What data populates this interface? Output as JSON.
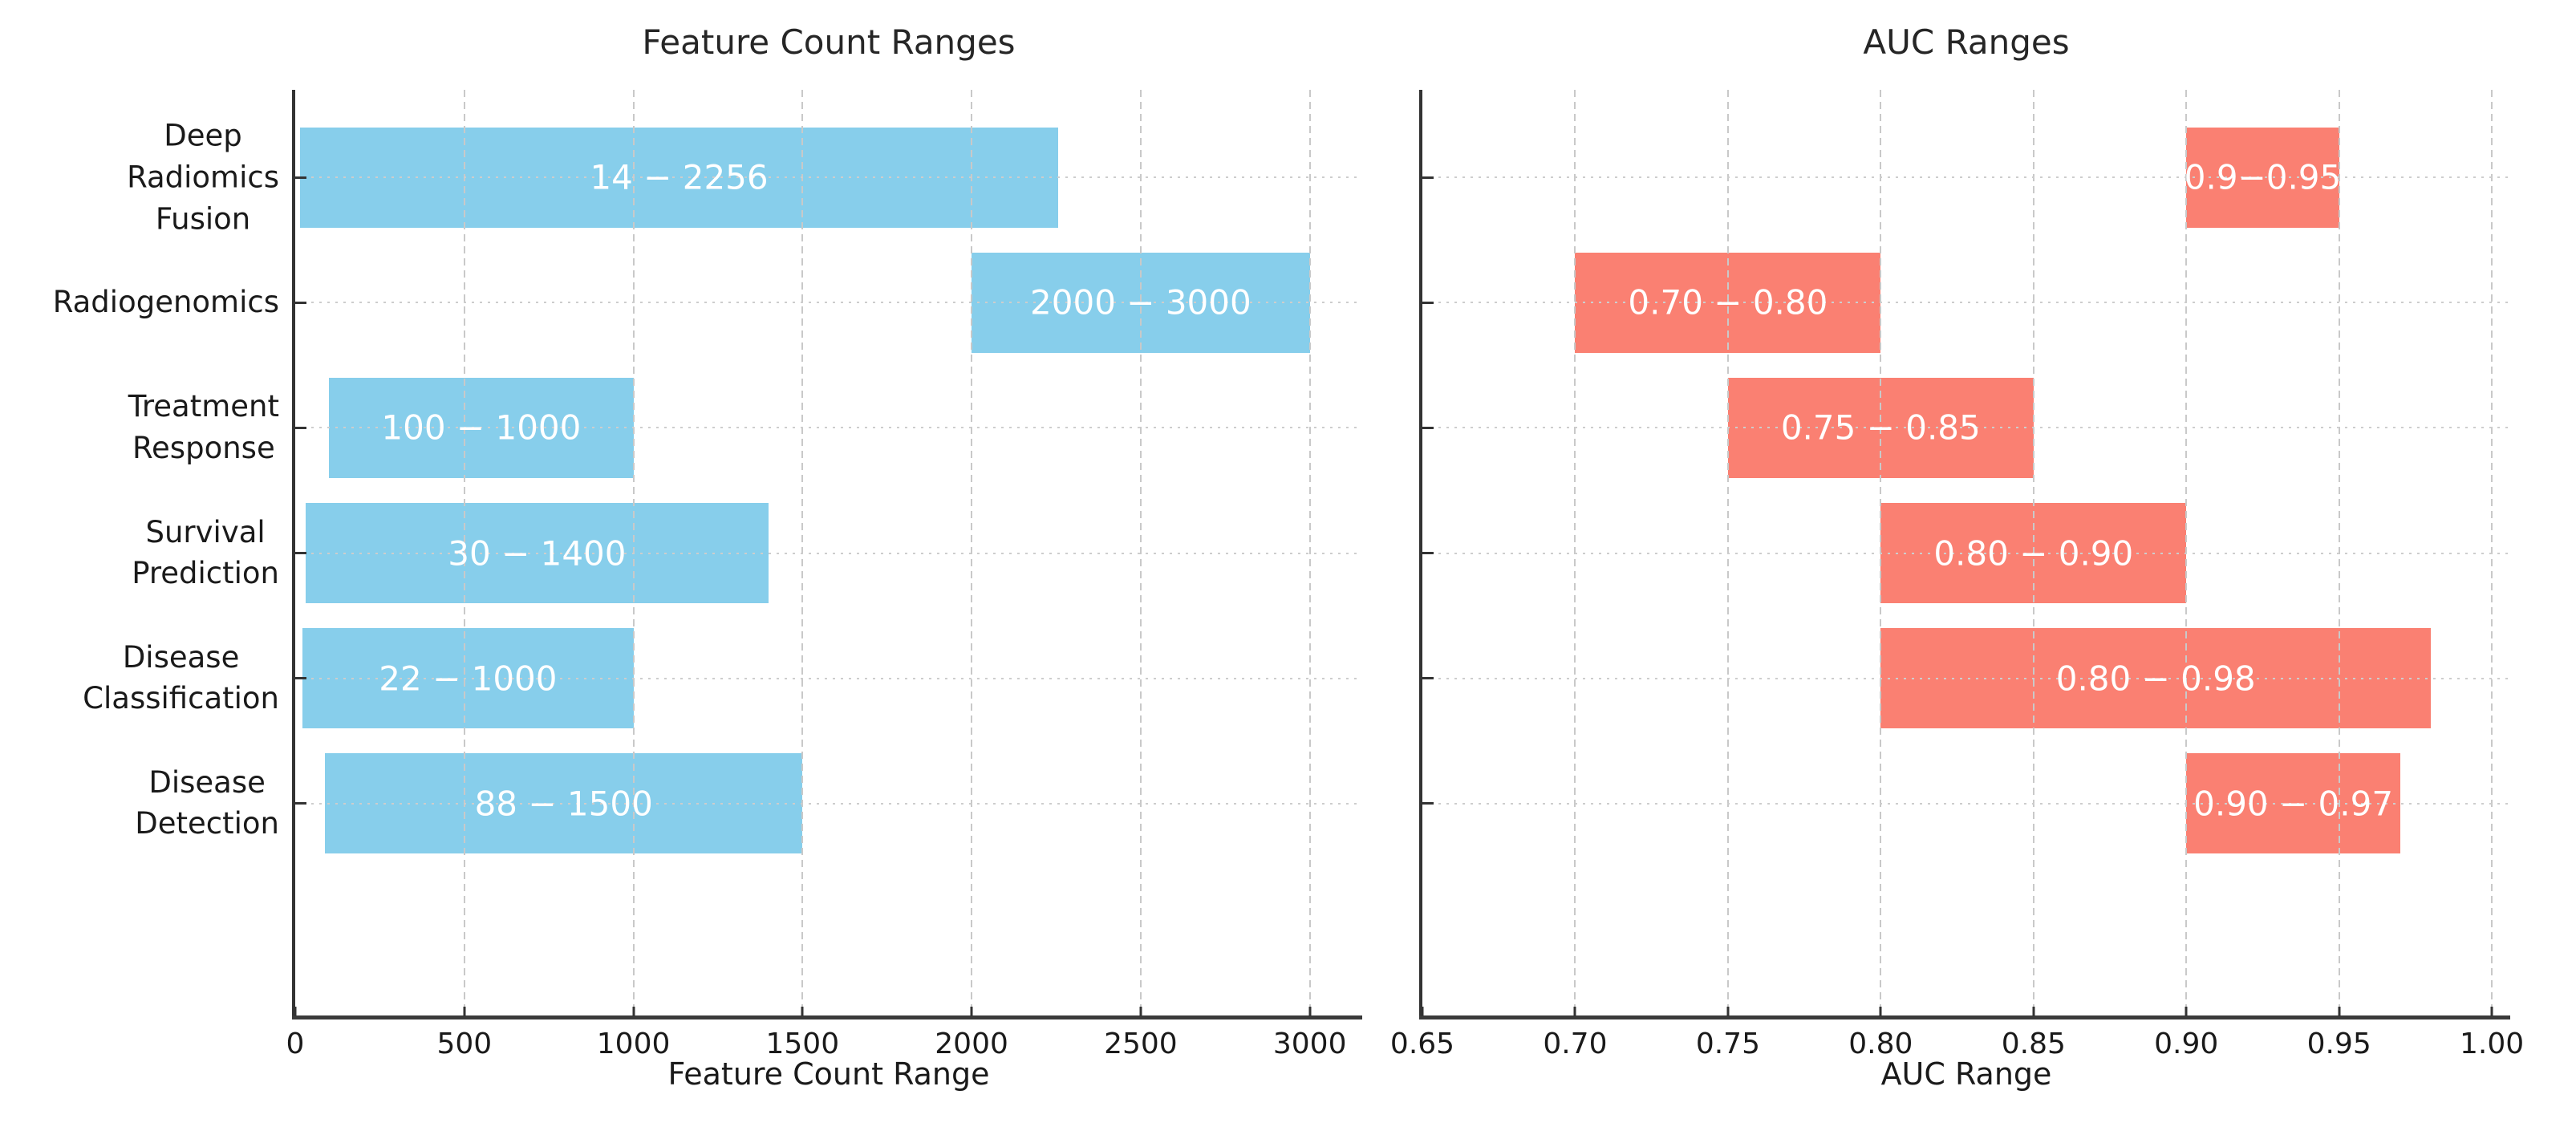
{
  "chart_data": [
    {
      "type": "bar",
      "orientation": "horizontal-range",
      "title": "Feature Count Ranges",
      "xlabel": "Feature Count Range",
      "bar_color": "#87CEEB",
      "bar_label_color": "#ffffff",
      "grid": true,
      "categories": [
        "Deep\nRadiomics\nFusion",
        "Radiogenomics",
        "Treatment\nResponse",
        "Survival\nPrediction",
        "Disease\nClassification",
        "Disease\nDetection"
      ],
      "ranges": [
        [
          14,
          2256
        ],
        [
          2000,
          3000
        ],
        [
          100,
          1000
        ],
        [
          30,
          1400
        ],
        [
          22,
          1000
        ],
        [
          88,
          1500
        ]
      ],
      "bar_labels": [
        "14 − 2256",
        "2000 − 3000",
        "100 − 1000",
        "30 − 1400",
        "22 − 1000",
        "88 − 1500"
      ],
      "xlim": [
        0,
        3155
      ],
      "xticks": [
        0,
        500,
        1000,
        1500,
        2000,
        2500,
        3000
      ],
      "xtick_labels": [
        "0",
        "500",
        "1000",
        "1500",
        "2000",
        "2500",
        "3000"
      ],
      "show_category_labels": true
    },
    {
      "type": "bar",
      "orientation": "horizontal-range",
      "title": "AUC Ranges",
      "xlabel": "AUC Range",
      "bar_color": "#FA8072",
      "bar_label_color": "#ffffff",
      "grid": true,
      "categories": [
        "Deep\nRadiomics\nFusion",
        "Radiogenomics",
        "Treatment\nResponse",
        "Survival\nPrediction",
        "Disease\nClassification",
        "Disease\nDetection"
      ],
      "ranges": [
        [
          0.9,
          0.95
        ],
        [
          0.7,
          0.8
        ],
        [
          0.75,
          0.85
        ],
        [
          0.8,
          0.9
        ],
        [
          0.8,
          0.98
        ],
        [
          0.9,
          0.97
        ]
      ],
      "bar_labels": [
        "0.9−0.95",
        "0.70 − 0.80",
        "0.75 − 0.85",
        "0.80 − 0.90",
        "0.80 − 0.98",
        "0.90 − 0.97"
      ],
      "xlim": [
        0.65,
        1.006
      ],
      "xticks": [
        0.65,
        0.7,
        0.75,
        0.8,
        0.85,
        0.9,
        0.95,
        1.0
      ],
      "xtick_labels": [
        "0.65",
        "0.70",
        "0.75",
        "0.80",
        "0.85",
        "0.90",
        "0.95",
        "1.00"
      ],
      "show_category_labels": false
    }
  ]
}
